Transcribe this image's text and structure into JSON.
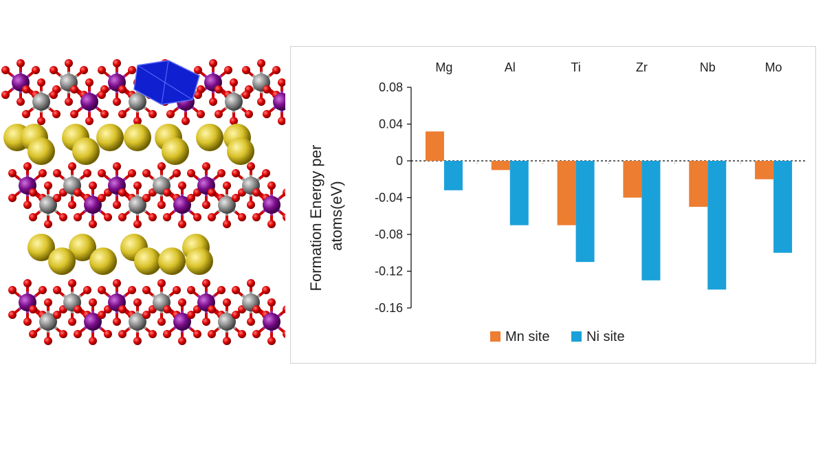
{
  "chart_data": {
    "type": "bar",
    "categories": [
      "Mg",
      "Al",
      "Ti",
      "Zr",
      "Nb",
      "Mo"
    ],
    "series": [
      {
        "name": "Mn site",
        "color": "#ED7D31",
        "values": [
          0.032,
          -0.01,
          -0.07,
          -0.04,
          -0.05,
          -0.02
        ]
      },
      {
        "name": "Ni site",
        "color": "#1BA1D9",
        "values": [
          -0.032,
          -0.07,
          -0.11,
          -0.13,
          -0.14,
          -0.1
        ]
      }
    ],
    "ylabel_lines": [
      "Formation Energy per",
      "atoms(eV)"
    ],
    "ylim": [
      -0.16,
      0.08
    ],
    "yticks": [
      0.08,
      0.04,
      0,
      -0.04,
      -0.08,
      -0.12,
      -0.16
    ],
    "ytick_labels": [
      "0.08",
      "0.04",
      "0",
      "-0.04",
      "-0.08",
      "-0.12",
      "-0.16"
    ],
    "category_labels_position": "top",
    "zero_line": "dashed",
    "grid": false,
    "legend_position": "bottom"
  },
  "structure_colors": {
    "oxygen": "#dd0000",
    "manganese": "#7a0e8a",
    "nickel": "#8d8d8d",
    "lithium": "#d9c22a",
    "dopant_polyhedron": "#1020d0"
  }
}
